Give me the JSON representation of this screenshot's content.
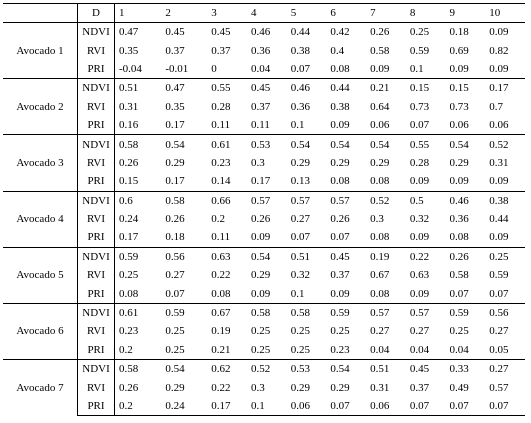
{
  "table": {
    "header": {
      "label": "D",
      "columns": [
        1,
        2,
        3,
        4,
        5,
        6,
        7,
        8,
        9,
        10
      ]
    },
    "groups": [
      {
        "name": "Avocado 1",
        "rows": [
          {
            "index": "NDVI",
            "values": [
              0.47,
              0.45,
              0.45,
              0.46,
              0.44,
              0.42,
              0.26,
              0.25,
              0.18,
              0.09
            ]
          },
          {
            "index": "RVI",
            "values": [
              0.35,
              0.37,
              0.37,
              0.36,
              0.38,
              0.4,
              0.58,
              0.59,
              0.69,
              0.82
            ]
          },
          {
            "index": "PRI",
            "values": [
              -0.04,
              -0.01,
              0,
              0.04,
              0.07,
              0.08,
              0.09,
              0.1,
              0.09,
              0.09
            ]
          }
        ]
      },
      {
        "name": "Avocado 2",
        "rows": [
          {
            "index": "NDVI",
            "values": [
              0.51,
              0.47,
              0.55,
              0.45,
              0.46,
              0.44,
              0.21,
              0.15,
              0.15,
              0.17
            ]
          },
          {
            "index": "RVI",
            "values": [
              0.31,
              0.35,
              0.28,
              0.37,
              0.36,
              0.38,
              0.64,
              0.73,
              0.73,
              0.7
            ]
          },
          {
            "index": "PRI",
            "values": [
              0.16,
              0.17,
              0.11,
              0.11,
              0.1,
              0.09,
              0.06,
              0.07,
              0.06,
              0.06
            ]
          }
        ]
      },
      {
        "name": "Avocado 3",
        "rows": [
          {
            "index": "NDVI",
            "values": [
              0.58,
              0.54,
              0.61,
              0.53,
              0.54,
              0.54,
              0.54,
              0.55,
              0.54,
              0.52
            ]
          },
          {
            "index": "RVI",
            "values": [
              0.26,
              0.29,
              0.23,
              0.3,
              0.29,
              0.29,
              0.29,
              0.28,
              0.29,
              0.31
            ]
          },
          {
            "index": "PRI",
            "values": [
              0.15,
              0.17,
              0.14,
              0.17,
              0.13,
              0.08,
              0.08,
              0.09,
              0.09,
              0.09
            ]
          }
        ]
      },
      {
        "name": "Avocado 4",
        "rows": [
          {
            "index": "NDVI",
            "values": [
              0.6,
              0.58,
              0.66,
              0.57,
              0.57,
              0.57,
              0.52,
              0.5,
              0.46,
              0.38
            ]
          },
          {
            "index": "RVI",
            "values": [
              0.24,
              0.26,
              0.2,
              0.26,
              0.27,
              0.26,
              0.3,
              0.32,
              0.36,
              0.44
            ]
          },
          {
            "index": "PRI",
            "values": [
              0.17,
              0.18,
              0.11,
              0.09,
              0.07,
              0.07,
              0.08,
              0.09,
              0.08,
              0.09
            ]
          }
        ]
      },
      {
        "name": "Avocado 5",
        "rows": [
          {
            "index": "NDVI",
            "values": [
              0.59,
              0.56,
              0.63,
              0.54,
              0.51,
              0.45,
              0.19,
              0.22,
              0.26,
              0.25
            ]
          },
          {
            "index": "RVI",
            "values": [
              0.25,
              0.27,
              0.22,
              0.29,
              0.32,
              0.37,
              0.67,
              0.63,
              0.58,
              0.59
            ]
          },
          {
            "index": "PRI",
            "values": [
              0.08,
              0.07,
              0.08,
              0.09,
              0.1,
              0.09,
              0.08,
              0.09,
              0.07,
              0.07
            ]
          }
        ]
      },
      {
        "name": "Avocado 6",
        "rows": [
          {
            "index": "NDVI",
            "values": [
              0.61,
              0.59,
              0.67,
              0.58,
              0.58,
              0.59,
              0.57,
              0.57,
              0.59,
              0.56
            ]
          },
          {
            "index": "RVI",
            "values": [
              0.23,
              0.25,
              0.19,
              0.25,
              0.25,
              0.25,
              0.27,
              0.27,
              0.25,
              0.27
            ]
          },
          {
            "index": "PRI",
            "values": [
              0.2,
              0.25,
              0.21,
              0.25,
              0.25,
              0.23,
              0.04,
              0.04,
              0.04,
              0.05
            ]
          }
        ]
      },
      {
        "name": "Avocado 7",
        "rows": [
          {
            "index": "NDVI",
            "values": [
              0.58,
              0.54,
              0.62,
              0.52,
              0.53,
              0.54,
              0.51,
              0.45,
              0.33,
              0.27
            ]
          },
          {
            "index": "RVI",
            "values": [
              0.26,
              0.29,
              0.22,
              0.3,
              0.29,
              0.29,
              0.31,
              0.37,
              0.49,
              0.57
            ]
          },
          {
            "index": "PRI",
            "values": [
              0.2,
              0.24,
              0.17,
              0.1,
              0.06,
              0.07,
              0.06,
              0.07,
              0.07,
              0.07
            ]
          }
        ]
      }
    ]
  }
}
